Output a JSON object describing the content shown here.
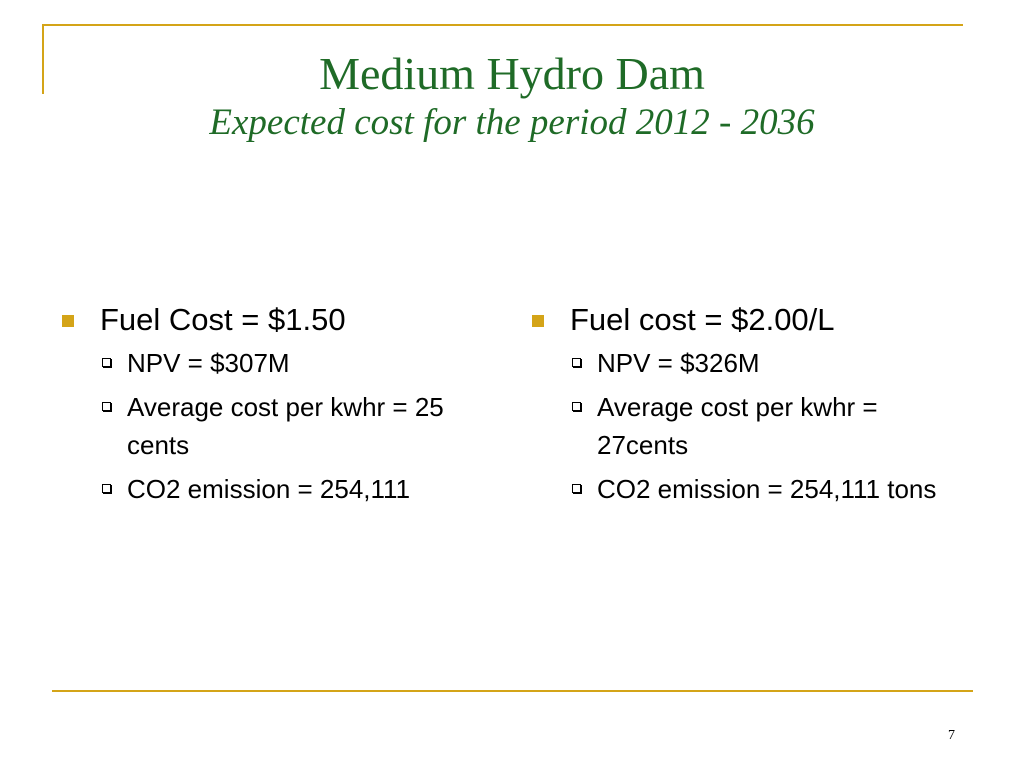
{
  "slide": {
    "title": "Medium Hydro Dam",
    "subtitle": "Expected cost for the period 2012 - 2036",
    "page_number": "7"
  },
  "columns": [
    {
      "heading": "Fuel Cost = $1.50",
      "items": [
        "NPV = $307M",
        "Average cost per kwhr = 25 cents",
        "CO2 emission = 254,111"
      ]
    },
    {
      "heading": "Fuel cost = $2.00/L",
      "items": [
        "NPV = $326M",
        "Average cost per kwhr = 27cents",
        "CO2 emission = 254,111 tons"
      ]
    }
  ],
  "colors": {
    "accent": "#d4a418",
    "title": "#1f6b27"
  }
}
